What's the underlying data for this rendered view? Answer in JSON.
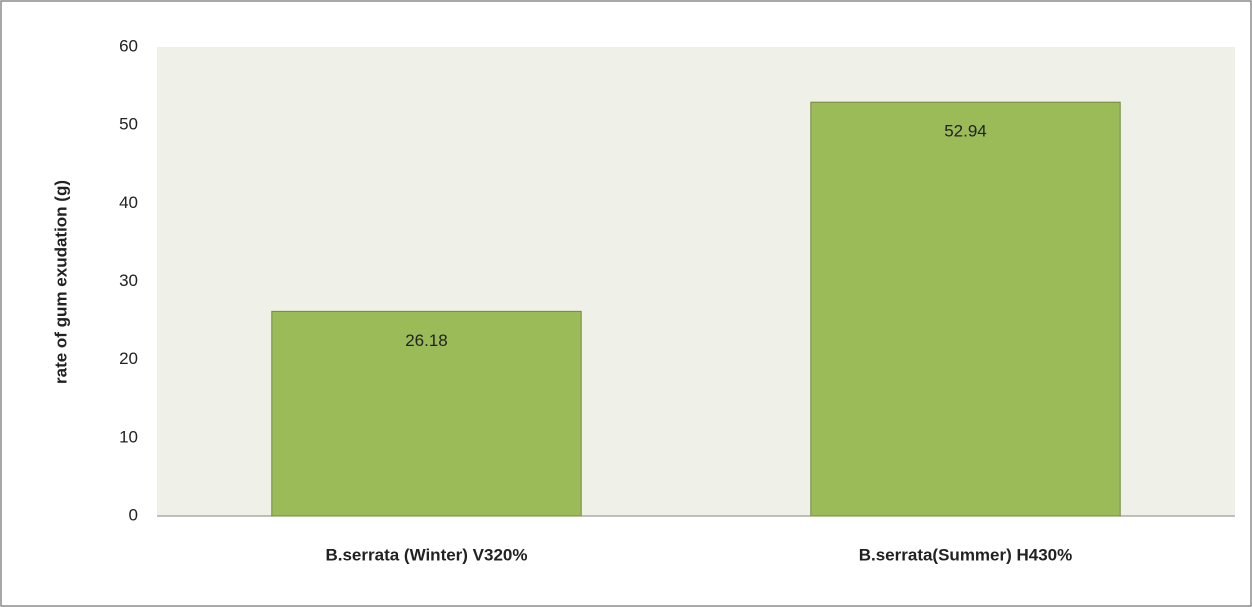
{
  "chart_data": {
    "type": "bar",
    "y_label": "rate of gum exudation (g)",
    "categories": [
      "B.serrata (Winter) V320%",
      "B.serrata(Summer) H430%"
    ],
    "values": [
      26.18,
      52.94
    ],
    "color": "#9bbb59",
    "ylim": [
      0,
      60
    ],
    "yticks": [
      0,
      10,
      20,
      30,
      40,
      50,
      60
    ],
    "grid": false
  }
}
